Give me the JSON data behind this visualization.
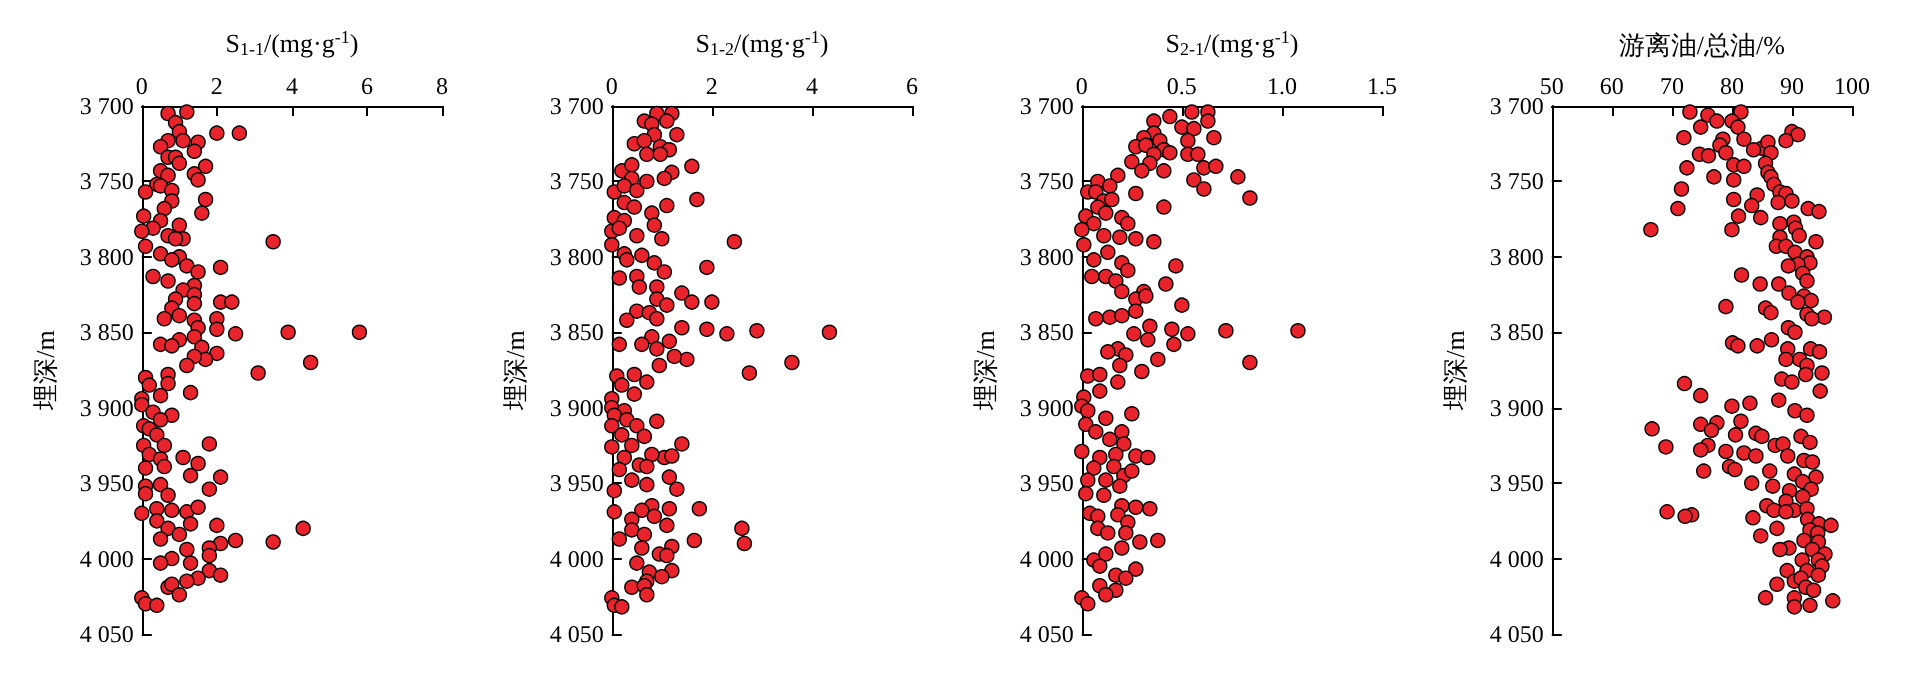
{
  "chart_data": [
    {
      "type": "scatter",
      "xlabel": "S$_{1-1}$/(mg·g$^{-1}$)",
      "ylabel": "埋深/m",
      "marker": "circle",
      "xlim": [
        0,
        8
      ],
      "xticks": [
        0,
        2,
        4,
        6,
        8
      ],
      "ylim": [
        4050,
        3700
      ],
      "yticks": [
        {
          "value": 3700,
          "label": "3 700"
        },
        {
          "value": 3750,
          "label": "3 750"
        },
        {
          "value": 3800,
          "label": "3 800"
        },
        {
          "value": 3850,
          "label": "3 850"
        },
        {
          "value": 3900,
          "label": "3 900"
        },
        {
          "value": 3950,
          "label": "3 950"
        },
        {
          "value": 4000,
          "label": "4 000"
        },
        {
          "value": 4050,
          "label": "4 050"
        }
      ],
      "series": [
        {
          "color": "#e8232b",
          "x": [
            0.7,
            1.2,
            0.9,
            1.0,
            2.0,
            2.6,
            0.7,
            1.1,
            1.5,
            0.5,
            1.4,
            0.7,
            0.9,
            1.0,
            1.7,
            0.5,
            1.4,
            0.7,
            1.5,
            0.4,
            0.1,
            0.5,
            0.8,
            1.7,
            0.8,
            0.05,
            0.6,
            1.6,
            0.5,
            0.3,
            1.0,
            0.0,
            0.7,
            1.1,
            0.9,
            3.5,
            0.1,
            0.5,
            1.0,
            0.8,
            1.2,
            2.1,
            1.5,
            0.3,
            0.7,
            1.4,
            1.1,
            1.4,
            0.9,
            2.1,
            2.4,
            1.4,
            0.8,
            0.6,
            1.4,
            2.0,
            1.0,
            1.5,
            2.0,
            3.9,
            5.8,
            2.5,
            1.4,
            1.0,
            0.5,
            0.8,
            1.6,
            2.0,
            1.7,
            1.4,
            4.5,
            1.2,
            3.1,
            0.1,
            0.7,
            0.7,
            0.2,
            1.3,
            0.5,
            0.0,
            0.0,
            0.3,
            0.8,
            0.5,
            0.05,
            0.2,
            0.4,
            1.8,
            0.05,
            0.6,
            0.2,
            1.1,
            0.5,
            1.5,
            0.1,
            0.6,
            2.1,
            1.3,
            0.1,
            0.5,
            1.8,
            0.7,
            0.1,
            0.0,
            0.4,
            0.8,
            1.2,
            1.5,
            0.4,
            1.3,
            2.0,
            4.3,
            0.7,
            1.0,
            0.5,
            2.5,
            3.5,
            2.1,
            1.8,
            1.2,
            1.8,
            0.8,
            1.3,
            0.5,
            1.8,
            2.1,
            1.5,
            1.2,
            0.7,
            0.8,
            1.0,
            0.0,
            0.1,
            0.4
          ],
          "values": [
            3705,
            3704,
            3711,
            3717,
            3718,
            3718,
            3723,
            3723,
            3724,
            3727,
            3730,
            3734,
            3734,
            3738,
            3740,
            3743,
            3745,
            3746,
            3749,
            3752,
            3757,
            3753,
            3756,
            3762,
            3763,
            3773,
            3768,
            3771,
            3776,
            3781,
            3779,
            3783,
            3786,
            3788,
            3788,
            3790,
            3793,
            3798,
            3800,
            3802,
            3806,
            3807,
            3810,
            3813,
            3816,
            3819,
            3822,
            3825,
            3828,
            3830,
            3830,
            3831,
            3834,
            3841,
            3842,
            3841,
            3839,
            3847,
            3848,
            3850,
            3850,
            3851,
            3853,
            3855,
            3858,
            3859,
            3860,
            3864,
            3868,
            3866,
            3870,
            3872,
            3877,
            3880,
            3878,
            3884,
            3885,
            3890,
            3892,
            3894,
            3898,
            3903,
            3905,
            3908,
            3912,
            3914,
            3918,
            3924,
            3925,
            3925,
            3931,
            3933,
            3934,
            3937,
            3940,
            3939,
            3946,
            3945,
            3952,
            3951,
            3954,
            3958,
            3957,
            3970,
            3967,
            3968,
            3969,
            3966,
            3975,
            3977,
            3978,
            3980,
            3980,
            3984,
            3987,
            3988,
            3989,
            3990,
            3993,
            3994,
            3998,
            4000,
            4003,
            4003,
            4008,
            4011,
            4013,
            4015,
            4019,
            4017,
            4024,
            4026,
            4030,
            4031
          ]
        }
      ]
    },
    {
      "type": "scatter",
      "xlabel": "S$_{1-2}$/(mg·g$^{-1}$)",
      "ylabel": "埋深/m",
      "marker": "circle",
      "xlim": [
        0,
        6
      ],
      "xticks": [
        0,
        2,
        4,
        6
      ],
      "ylim": [
        4050,
        3700
      ],
      "yticks": [
        {
          "value": 3700,
          "label": "3 700"
        },
        {
          "value": 3750,
          "label": "3 750"
        },
        {
          "value": 3800,
          "label": "3 800"
        },
        {
          "value": 3850,
          "label": "3 850"
        },
        {
          "value": 3900,
          "label": "3 900"
        },
        {
          "value": 3950,
          "label": "3 950"
        },
        {
          "value": 4000,
          "label": "4 000"
        },
        {
          "value": 4050,
          "label": "4 050"
        }
      ],
      "series": [
        {
          "color": "#e8232b",
          "x": [
            0.65,
            0.9,
            1.2,
            1.1,
            0.8,
            1.3,
            0.85,
            0.45,
            0.65,
            0.97,
            1.15,
            0.7,
            0.97,
            1.6,
            0.2,
            0.4,
            1.2,
            0.4,
            1.05,
            0.05,
            0.25,
            0.5,
            0.7,
            1.7,
            0.25,
            0.45,
            1.1,
            0.8,
            0.05,
            0.25,
            0.85,
            0.0,
            0.15,
            0.5,
            1.0,
            2.45,
            0.0,
            0.25,
            0.6,
            0.85,
            1.05,
            1.9,
            0.3,
            0.15,
            0.5,
            0.55,
            0.9,
            1.4,
            0.9,
            2.0,
            1.6,
            1.1,
            0.5,
            0.75,
            0.9,
            0.3,
            1.4,
            1.9,
            2.9,
            4.35,
            2.3,
            0.8,
            1.15,
            0.15,
            0.6,
            0.9,
            1.5,
            1.25,
            3.6,
            0.95,
            2.75,
            0.1,
            0.45,
            0.2,
            0.7,
            0.45,
            0.0,
            0.0,
            0.25,
            0.05,
            0.3,
            0.0,
            0.5,
            0.9,
            0.2,
            0.65,
            1.4,
            0.0,
            0.4,
            1.05,
            0.8,
            1.2,
            0.25,
            0.55,
            0.15,
            0.7,
            1.15,
            0.4,
            1.3,
            0.05,
            0.7,
            0.8,
            1.75,
            0.6,
            1.15,
            0.05,
            0.4,
            0.85,
            1.1,
            2.6,
            0.4,
            0.65,
            1.65,
            2.65,
            0.15,
            1.2,
            0.6,
            0.95,
            1.1,
            0.5,
            1.2,
            0.75,
            1.0,
            0.7,
            0.4,
            0.65,
            0.7,
            0.0,
            0.05,
            0.2
          ],
          "values": [
            3710,
            3705,
            3705,
            3710,
            3712,
            3719,
            3719,
            3725,
            3723,
            3727,
            3729,
            3732,
            3732,
            3740,
            3743,
            3739,
            3744,
            3748,
            3748,
            3757,
            3753,
            3756,
            3750,
            3762,
            3764,
            3767,
            3766,
            3771,
            3774,
            3776,
            3779,
            3783,
            3781,
            3786,
            3788,
            3790,
            3792,
            3798,
            3799,
            3804,
            3810,
            3807,
            3802,
            3814,
            3813,
            3820,
            3820,
            3824,
            3828,
            3830,
            3830,
            3832,
            3836,
            3837,
            3841,
            3842,
            3847,
            3848,
            3849,
            3850,
            3851,
            3853,
            3856,
            3858,
            3858,
            3861,
            3868,
            3866,
            3870,
            3872,
            3877,
            3879,
            3878,
            3885,
            3883,
            3891,
            3894,
            3900,
            3902,
            3905,
            3908,
            3912,
            3912,
            3909,
            3918,
            3919,
            3924,
            3926,
            3925,
            3933,
            3931,
            3932,
            3933,
            3938,
            3941,
            3939,
            3946,
            3948,
            3954,
            3955,
            3951,
            3965,
            3967,
            3968,
            3967,
            3969,
            3974,
            3972,
            3978,
            3980,
            3981,
            3984,
            3988,
            3990,
            3987,
            3992,
            3993,
            3997,
            3998,
            4003,
            4008,
            4009,
            4012,
            4015,
            4019,
            4018,
            4024,
            4026,
            4031,
            4032
          ]
        }
      ]
    },
    {
      "type": "scatter",
      "xlabel": "S$_{2-1}$/(mg·g$^{-1}$)",
      "ylabel": "埋深/m",
      "marker": "circle",
      "xlim": [
        0,
        1.5
      ],
      "xticks": [
        0,
        0.5,
        {
          "value": 1,
          "label": "1.0"
        },
        1.5
      ],
      "ylim": [
        4050,
        3700
      ],
      "yticks": [
        {
          "value": 3700,
          "label": "3 700"
        },
        {
          "value": 3750,
          "label": "3 750"
        },
        {
          "value": 3800,
          "label": "3 800"
        },
        {
          "value": 3850,
          "label": "3 850"
        },
        {
          "value": 3900,
          "label": "3 900"
        },
        {
          "value": 3950,
          "label": "3 950"
        },
        {
          "value": 4000,
          "label": "4 000"
        },
        {
          "value": 4050,
          "label": "4 050"
        }
      ],
      "series": [
        {
          "color": "#e8232b",
          "x": [
            0.36,
            0.44,
            0.55,
            0.63,
            0.63,
            0.5,
            0.56,
            0.66,
            0.36,
            0.31,
            0.39,
            0.53,
            0.27,
            0.32,
            0.41,
            0.44,
            0.53,
            0.58,
            0.36,
            0.25,
            0.34,
            0.3,
            0.41,
            0.61,
            0.67,
            0.18,
            0.08,
            0.14,
            0.56,
            0.78,
            0.61,
            0.03,
            0.27,
            0.07,
            0.84,
            0.11,
            0.15,
            0.41,
            0.08,
            0.02,
            0.2,
            0.12,
            0.23,
            0.06,
            0.0,
            0.19,
            0.11,
            0.27,
            0.36,
            0.01,
            0.06,
            0.13,
            0.2,
            0.47,
            0.23,
            0.05,
            0.12,
            0.17,
            0.42,
            0.2,
            0.31,
            0.27,
            0.32,
            0.5,
            0.07,
            0.14,
            0.2,
            0.27,
            0.34,
            0.45,
            0.72,
            1.08,
            0.53,
            0.26,
            0.33,
            0.46,
            0.18,
            0.13,
            0.22,
            0.38,
            0.84,
            0.19,
            0.3,
            0.03,
            0.09,
            0.18,
            0.09,
            0.01,
            0.0,
            0.03,
            0.12,
            0.25,
            0.02,
            0.07,
            0.2,
            0.14,
            0.21,
            0.0,
            0.09,
            0.17,
            0.27,
            0.33,
            0.06,
            0.16,
            0.21,
            0.25,
            0.03,
            0.12,
            0.19,
            0.02,
            0.11,
            0.2,
            0.27,
            0.34,
            0.04,
            0.08,
            0.18,
            0.23,
            0.08,
            0.13,
            0.22,
            0.29,
            0.38,
            0.2,
            0.06,
            0.12,
            0.09,
            0.27,
            0.17,
            0.22,
            0.09,
            0.17,
            0.12,
            0.0,
            0.03
          ],
          "values": [
            3710,
            3707,
            3704,
            3704,
            3710,
            3714,
            3715,
            3721,
            3718,
            3721,
            3723,
            3723,
            3727,
            3726,
            3729,
            3731,
            3732,
            3732,
            3732,
            3737,
            3738,
            3743,
            3743,
            3741,
            3740,
            3746,
            3750,
            3753,
            3749,
            3747,
            3755,
            3757,
            3758,
            3757,
            3761,
            3763,
            3762,
            3767,
            3767,
            3773,
            3774,
            3771,
            3778,
            3778,
            3782,
            3787,
            3786,
            3788,
            3790,
            3792,
            3802,
            3797,
            3804,
            3806,
            3809,
            3813,
            3813,
            3816,
            3818,
            3823,
            3823,
            3828,
            3826,
            3832,
            3841,
            3840,
            3839,
            3836,
            3846,
            3848,
            3849,
            3849,
            3851,
            3851,
            3855,
            3858,
            3861,
            3863,
            3865,
            3868,
            3870,
            3872,
            3876,
            3879,
            3878,
            3883,
            3889,
            3893,
            3899,
            3902,
            3907,
            3904,
            3911,
            3916,
            3916,
            3921,
            3924,
            3929,
            3933,
            3931,
            3932,
            3933,
            3940,
            3939,
            3945,
            3942,
            3948,
            3948,
            3952,
            3957,
            3958,
            3965,
            3966,
            3967,
            3970,
            3972,
            3971,
            3976,
            3980,
            3983,
            3983,
            3989,
            3988,
            3993,
            4001,
            3997,
            4005,
            4007,
            4011,
            4013,
            4018,
            4021,
            4024,
            4026,
            4030
          ]
        }
      ]
    },
    {
      "type": "scatter",
      "xlabel": "游离油/总油/%",
      "ylabel": "埋深/m",
      "marker": "circle",
      "xlim": [
        50,
        100
      ],
      "xticks": [
        50,
        60,
        70,
        80,
        90,
        100
      ],
      "ylim": [
        4050,
        3700
      ],
      "yticks": [
        {
          "value": 3700,
          "label": "3 700"
        },
        {
          "value": 3750,
          "label": "3 750"
        },
        {
          "value": 3800,
          "label": "3 800"
        },
        {
          "value": 3850,
          "label": "3 850"
        },
        {
          "value": 3900,
          "label": "3 900"
        },
        {
          "value": 3950,
          "label": "3 950"
        },
        {
          "value": 4000,
          "label": "4 000"
        },
        {
          "value": 4050,
          "label": "4 050"
        }
      ],
      "series": [
        {
          "color": "#e8232b",
          "x": [
            73,
            76,
            77.5,
            81.5,
            80,
            74.8,
            81,
            90,
            91,
            72,
            78.5,
            82,
            89,
            78,
            85,
            86,
            79,
            83.6,
            86.5,
            74.6,
            76.1,
            85.6,
            80.3,
            82,
            72.5,
            86,
            77,
            86.5,
            80.3,
            87,
            88,
            71.6,
            89,
            84.2,
            87.7,
            90,
            80.3,
            83.3,
            71,
            84.8,
            92.7,
            94.5,
            81.1,
            66.5,
            80,
            90.3,
            88,
            90.6,
            91.2,
            88,
            87.4,
            89,
            94,
            90.5,
            92.5,
            93,
            91,
            89.4,
            91.8,
            81.6,
            92.5,
            87.8,
            84.7,
            89.5,
            92,
            93.2,
            91,
            79,
            85.6,
            86.5,
            92.5,
            95.4,
            93.3,
            89.4,
            90.5,
            80.1,
            81,
            84.2,
            86.6,
            89.3,
            93.1,
            94.6,
            91.3,
            89,
            92.5,
            95,
            92.3,
            88.3,
            72.1,
            90,
            94.7,
            74.8,
            87.8,
            83,
            80,
            90.5,
            92.5,
            81.5,
            77.5,
            74.8,
            66.7,
            76.6,
            80.6,
            84,
            85,
            91.5,
            93,
            69,
            76,
            87.2,
            88.5,
            74.8,
            79,
            82,
            89.3,
            92,
            84,
            93.4,
            79.6,
            80.5,
            75.3,
            86.3,
            90.4,
            94,
            91.8,
            83.3,
            86.8,
            89.6,
            93.2,
            91.8,
            89,
            85.8,
            90.4,
            92.5,
            69.2,
            73.3,
            72.2,
            87,
            89,
            92.6,
            83.5,
            94.5,
            96.5,
            87.5,
            84.8,
            93,
            94.3,
            92,
            94.4,
            89.5,
            93.4,
            95.5,
            91.7,
            88,
            94.4,
            95,
            92.5,
            89.2,
            94.4,
            87.5,
            90.4,
            91.5,
            92.3,
            93.6,
            85.6,
            90.4,
            96.8,
            90.4,
            93
          ],
          "values": [
            3704,
            3706,
            3710,
            3704,
            3710,
            3714,
            3714,
            3717,
            3719,
            3721,
            3722,
            3722,
            3723,
            3726,
            3728,
            3724,
            3731,
            3729,
            3731,
            3732,
            3733,
            3738,
            3739,
            3740,
            3741,
            3744,
            3747,
            3747,
            3749,
            3752,
            3757,
            3755,
            3758,
            3759,
            3764,
            3763,
            3762,
            3766,
            3768,
            3774,
            3768,
            3770,
            3773,
            3782,
            3782,
            3777,
            3778,
            3781,
            3786,
            3787,
            3793,
            3793,
            3790,
            3797,
            3800,
            3804,
            3805,
            3806,
            3811,
            3812,
            3816,
            3818,
            3818,
            3824,
            3826,
            3829,
            3830,
            3833,
            3834,
            3837,
            3838,
            3840,
            3841,
            3847,
            3850,
            3857,
            3859,
            3859,
            3855,
            3861,
            3861,
            3863,
            3868,
            3868,
            3872,
            3877,
            3878,
            3881,
            3884,
            3883,
            3889,
            3892,
            3895,
            3897,
            3899,
            3902,
            3905,
            3909,
            3910,
            3911,
            3914,
            3915,
            3918,
            3917,
            3919,
            3919,
            3923,
            3926,
            3925,
            3925,
            3924,
            3928,
            3929,
            3930,
            3932,
            3935,
            3932,
            3936,
            3939,
            3941,
            3942,
            3942,
            3944,
            3946,
            3949,
            3950,
            3952,
            3955,
            3954,
            3959,
            3962,
            3965,
            3968,
            3967,
            3969,
            3971,
            3972,
            3968,
            3969,
            3974,
            3973,
            3977,
            3978,
            3980,
            3985,
            3981,
            3983,
            3988,
            3989,
            3993,
            3994,
            3997,
            4001,
            3994,
            4001,
            4005,
            4008,
            4008,
            4011,
            4017,
            4015,
            4013,
            4019,
            4021,
            4026,
            4026,
            4028,
            4032,
            4031
          ]
        }
      ]
    }
  ]
}
